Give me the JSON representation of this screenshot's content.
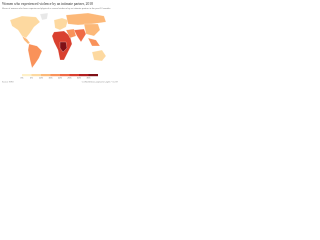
{
  "header": {
    "title": "Women who experienced violence by an intimate partner, 2018",
    "subtitle": "Share of women who have experienced physical or sexual violence by an intimate partner in the past 12 months."
  },
  "legend": {
    "labels": [
      "0%",
      "5%",
      "10%",
      "15%",
      "20%",
      "25%",
      "30%",
      "35%"
    ],
    "colors": [
      "#fef0c8",
      "#fdd9a0",
      "#fcb878",
      "#f9925a",
      "#ef6a45",
      "#d9402f",
      "#b32020",
      "#7f1016"
    ]
  },
  "footer": {
    "source": "Source: WHO",
    "credit": "OurWorldInData.org/women-rights • CC BY"
  }
}
